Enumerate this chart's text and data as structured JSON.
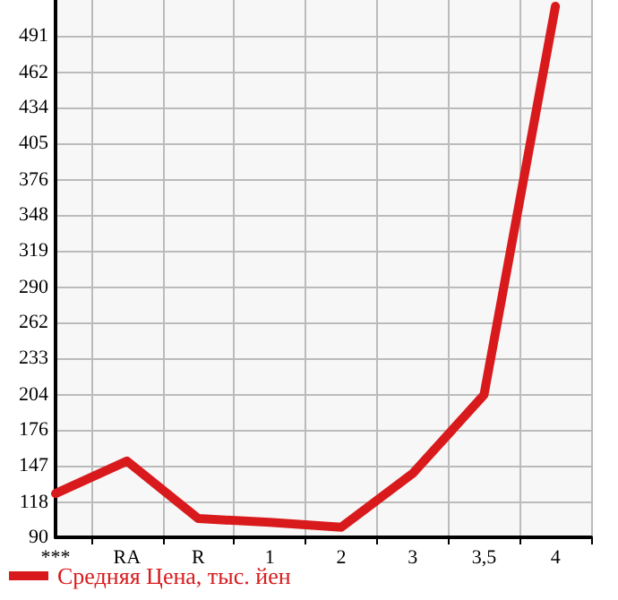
{
  "chart_data": {
    "type": "line",
    "categories": [
      "***",
      "RA",
      "R",
      "1",
      "2",
      "3",
      "3,5",
      "4"
    ],
    "series": [
      {
        "name": "Средняя Цена, тыс. йен",
        "color": "#d91a1c",
        "values": [
          125,
          151,
          105,
          102,
          98,
          141,
          204,
          515
        ]
      }
    ],
    "ylim": [
      90,
      520
    ],
    "yticks": [
      90,
      118,
      147,
      176,
      204,
      233,
      262,
      290,
      319,
      348,
      376,
      405,
      434,
      462,
      491
    ],
    "grid": true,
    "legend": "bottom left",
    "marker": "none",
    "line_style": "solid"
  }
}
